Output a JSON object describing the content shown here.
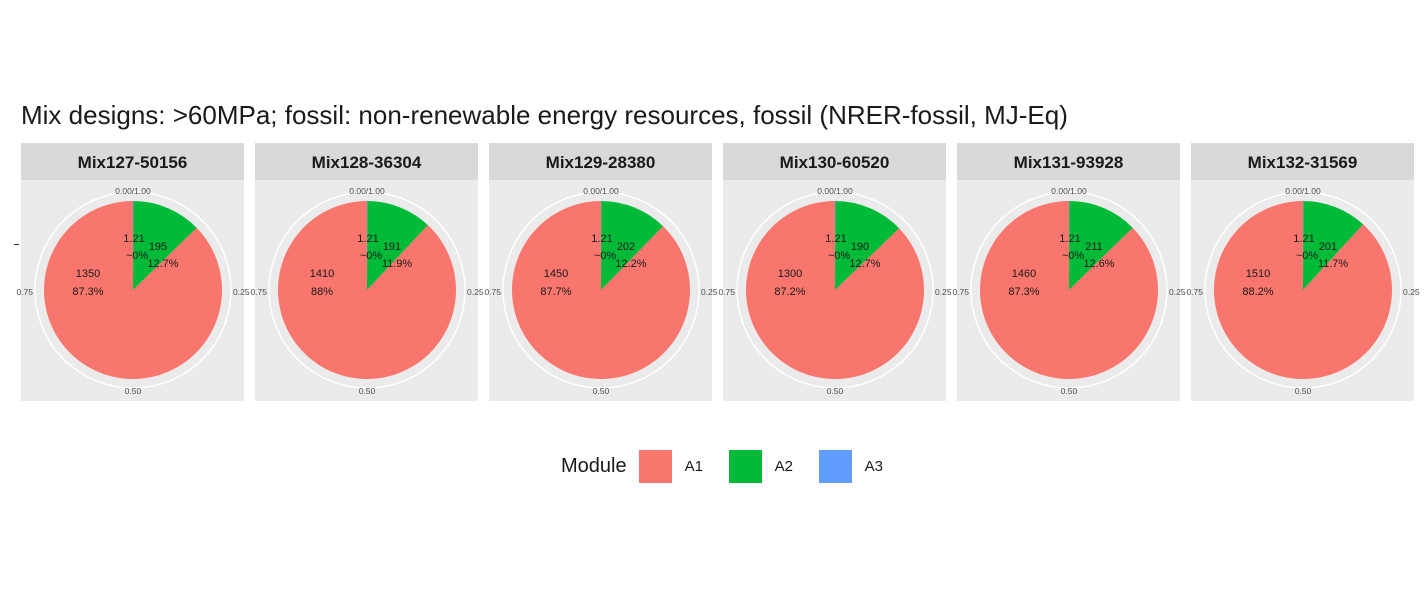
{
  "chart_data": {
    "type": "pie",
    "title": "Mix designs: >60MPa; fossil: non-renewable energy resources, fossil (NRER-fossil, MJ-Eq)",
    "theta_ticks": [
      "0.00/1.00",
      "0.25",
      "0.50",
      "0.75"
    ],
    "legend": {
      "title": "Module",
      "position": "bottom",
      "entries": [
        {
          "name": "A1",
          "color": "#F8766D"
        },
        {
          "name": "A2",
          "color": "#00BA38"
        },
        {
          "name": "A3",
          "color": "#619CFF"
        }
      ]
    },
    "facets": [
      {
        "name": "Mix127-50156",
        "slices": [
          {
            "module": "A1",
            "value": 1350,
            "value_label": "1350",
            "pct_label": "87.3%"
          },
          {
            "module": "A2",
            "value": 195,
            "value_label": "195",
            "pct_label": "12.7%"
          },
          {
            "module": "A3",
            "value": 1.21,
            "value_label": "1.21",
            "pct_label": "~0%"
          }
        ]
      },
      {
        "name": "Mix128-36304",
        "slices": [
          {
            "module": "A1",
            "value": 1410,
            "value_label": "1410",
            "pct_label": "88%"
          },
          {
            "module": "A2",
            "value": 191,
            "value_label": "191",
            "pct_label": "11.9%"
          },
          {
            "module": "A3",
            "value": 1.21,
            "value_label": "1.21",
            "pct_label": "~0%"
          }
        ]
      },
      {
        "name": "Mix129-28380",
        "slices": [
          {
            "module": "A1",
            "value": 1450,
            "value_label": "1450",
            "pct_label": "87.7%"
          },
          {
            "module": "A2",
            "value": 202,
            "value_label": "202",
            "pct_label": "12.2%"
          },
          {
            "module": "A3",
            "value": 1.21,
            "value_label": "1.21",
            "pct_label": "~0%"
          }
        ]
      },
      {
        "name": "Mix130-60520",
        "slices": [
          {
            "module": "A1",
            "value": 1300,
            "value_label": "1300",
            "pct_label": "87.2%"
          },
          {
            "module": "A2",
            "value": 190,
            "value_label": "190",
            "pct_label": "12.7%"
          },
          {
            "module": "A3",
            "value": 1.21,
            "value_label": "1.21",
            "pct_label": "~0%"
          }
        ]
      },
      {
        "name": "Mix131-93928",
        "slices": [
          {
            "module": "A1",
            "value": 1460,
            "value_label": "1460",
            "pct_label": "87.3%"
          },
          {
            "module": "A2",
            "value": 211,
            "value_label": "211",
            "pct_label": "12.6%"
          },
          {
            "module": "A3",
            "value": 1.21,
            "value_label": "1.21",
            "pct_label": "~0%"
          }
        ]
      },
      {
        "name": "Mix132-31569",
        "slices": [
          {
            "module": "A1",
            "value": 1510,
            "value_label": "1510",
            "pct_label": "88.2%"
          },
          {
            "module": "A2",
            "value": 201,
            "value_label": "201",
            "pct_label": "11.7%"
          },
          {
            "module": "A3",
            "value": 1.21,
            "value_label": "1.21",
            "pct_label": "~0%"
          }
        ]
      }
    ]
  }
}
